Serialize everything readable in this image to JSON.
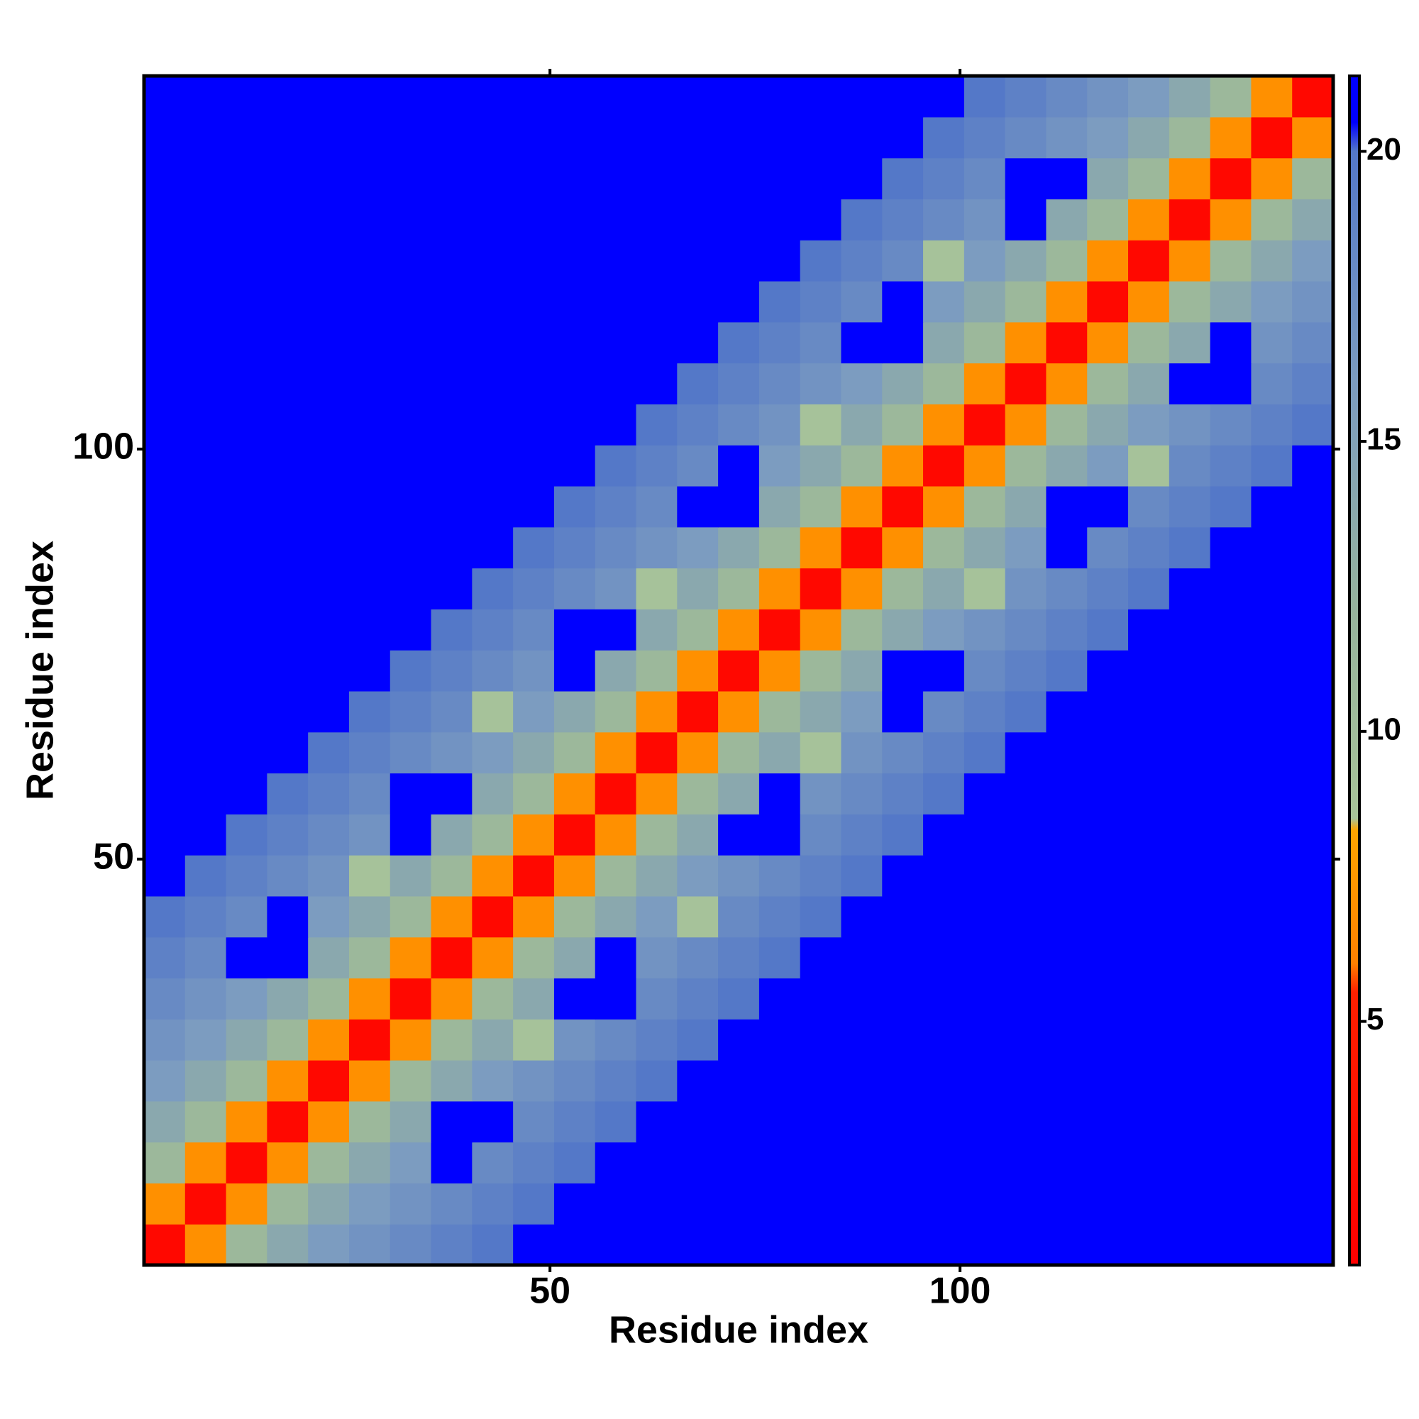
{
  "chart_data": {
    "type": "heatmap",
    "x_label": "Residue index",
    "y_label": "Residue index",
    "xlim": [
      0.5,
      145.5
    ],
    "ylim": [
      0.5,
      145.5
    ],
    "xticks": [
      50,
      100
    ],
    "yticks": [
      50,
      100
    ],
    "bins": [
      0.5,
      5.5,
      10.5,
      15.5,
      20.5,
      25.5,
      30.5,
      35.5,
      40.5,
      45.5,
      50.5,
      55.5,
      60.5,
      65.5,
      70.5,
      75.5,
      80.5,
      85.5,
      90.5,
      95.5,
      100.5,
      105.5,
      110.5,
      115.5,
      120.5,
      125.5,
      130.5,
      135.5,
      140.5,
      145.5
    ],
    "zlim": [
      0.8,
      21.3
    ],
    "zticks": [
      5,
      10,
      15,
      20
    ],
    "colorscale": [
      [
        0.8,
        "#ff0000"
      ],
      [
        5.5,
        "#ff2000"
      ],
      [
        6,
        "#ff8000"
      ],
      [
        8.3,
        "#ffa500"
      ],
      [
        8.5,
        "#a8c49a"
      ],
      [
        12,
        "#97b39c"
      ],
      [
        16,
        "#7c9cc0"
      ],
      [
        20,
        "#5478c8"
      ],
      [
        20.5,
        "#0000ff"
      ]
    ],
    "z": [
      [
        2,
        7,
        11,
        14,
        16,
        17,
        18,
        19,
        20,
        21,
        21,
        21,
        21,
        21,
        21,
        21,
        21,
        21,
        21,
        21,
        21,
        21,
        21,
        21,
        21,
        21,
        21,
        21,
        21
      ],
      [
        7,
        2,
        7,
        11,
        14,
        16,
        17,
        18,
        19,
        20,
        21,
        21,
        21,
        21,
        21,
        21,
        21,
        21,
        21,
        21,
        21,
        21,
        21,
        21,
        21,
        21,
        21,
        21,
        21
      ],
      [
        11,
        7,
        2,
        7,
        11,
        14,
        16,
        21,
        18,
        19,
        20,
        21,
        21,
        21,
        21,
        21,
        21,
        21,
        21,
        21,
        21,
        21,
        21,
        21,
        21,
        21,
        21,
        21,
        21
      ],
      [
        14,
        11,
        7,
        2,
        7,
        11,
        14,
        21,
        21,
        18,
        19,
        20,
        21,
        21,
        21,
        21,
        21,
        21,
        21,
        21,
        21,
        21,
        21,
        21,
        21,
        21,
        21,
        21,
        21
      ],
      [
        16,
        14,
        11,
        7,
        2,
        7,
        11,
        14,
        16,
        17,
        18,
        19,
        20,
        21,
        21,
        21,
        21,
        21,
        21,
        21,
        21,
        21,
        21,
        21,
        21,
        21,
        21,
        21,
        21
      ],
      [
        17,
        16,
        14,
        11,
        7,
        2,
        7,
        11,
        14,
        9,
        17,
        18,
        19,
        20,
        21,
        21,
        21,
        21,
        21,
        21,
        21,
        21,
        21,
        21,
        21,
        21,
        21,
        21,
        21
      ],
      [
        18,
        17,
        16,
        14,
        11,
        7,
        2,
        7,
        11,
        14,
        21,
        21,
        18,
        19,
        20,
        21,
        21,
        21,
        21,
        21,
        21,
        21,
        21,
        21,
        21,
        21,
        21,
        21,
        21
      ],
      [
        19,
        18,
        21,
        21,
        14,
        11,
        7,
        2,
        7,
        11,
        14,
        21,
        17,
        18,
        19,
        20,
        21,
        21,
        21,
        21,
        21,
        21,
        21,
        21,
        21,
        21,
        21,
        21,
        21
      ],
      [
        20,
        19,
        18,
        21,
        16,
        14,
        11,
        7,
        2,
        7,
        11,
        14,
        16,
        9,
        18,
        19,
        20,
        21,
        21,
        21,
        21,
        21,
        21,
        21,
        21,
        21,
        21,
        21,
        21
      ],
      [
        21,
        20,
        19,
        18,
        17,
        9,
        14,
        11,
        7,
        2,
        7,
        11,
        14,
        16,
        17,
        18,
        19,
        20,
        21,
        21,
        21,
        21,
        21,
        21,
        21,
        21,
        21,
        21,
        21
      ],
      [
        21,
        21,
        20,
        19,
        18,
        17,
        21,
        14,
        11,
        7,
        2,
        7,
        11,
        14,
        21,
        21,
        18,
        19,
        20,
        21,
        21,
        21,
        21,
        21,
        21,
        21,
        21,
        21,
        21
      ],
      [
        21,
        21,
        21,
        20,
        19,
        18,
        21,
        21,
        14,
        11,
        7,
        2,
        7,
        11,
        14,
        21,
        17,
        18,
        19,
        20,
        21,
        21,
        21,
        21,
        21,
        21,
        21,
        21,
        21
      ],
      [
        21,
        21,
        21,
        21,
        20,
        19,
        18,
        17,
        16,
        14,
        11,
        7,
        2,
        7,
        11,
        14,
        9,
        17,
        18,
        19,
        20,
        21,
        21,
        21,
        21,
        21,
        21,
        21,
        21
      ],
      [
        21,
        21,
        21,
        21,
        21,
        20,
        19,
        18,
        9,
        16,
        14,
        11,
        7,
        2,
        7,
        11,
        14,
        16,
        21,
        18,
        19,
        20,
        21,
        21,
        21,
        21,
        21,
        21,
        21
      ],
      [
        21,
        21,
        21,
        21,
        21,
        21,
        20,
        19,
        18,
        17,
        21,
        14,
        11,
        7,
        2,
        7,
        11,
        14,
        21,
        21,
        18,
        19,
        20,
        21,
        21,
        21,
        21,
        21,
        21
      ],
      [
        21,
        21,
        21,
        21,
        21,
        21,
        21,
        20,
        19,
        18,
        21,
        21,
        14,
        11,
        7,
        2,
        7,
        11,
        14,
        16,
        17,
        18,
        19,
        20,
        21,
        21,
        21,
        21,
        21
      ],
      [
        21,
        21,
        21,
        21,
        21,
        21,
        21,
        21,
        20,
        19,
        18,
        17,
        9,
        14,
        11,
        7,
        2,
        7,
        11,
        14,
        9,
        17,
        18,
        19,
        20,
        21,
        21,
        21,
        21
      ],
      [
        21,
        21,
        21,
        21,
        21,
        21,
        21,
        21,
        21,
        20,
        19,
        18,
        17,
        16,
        14,
        11,
        7,
        2,
        7,
        11,
        14,
        16,
        21,
        18,
        19,
        20,
        21,
        21,
        21
      ],
      [
        21,
        21,
        21,
        21,
        21,
        21,
        21,
        21,
        21,
        21,
        20,
        19,
        18,
        21,
        21,
        14,
        11,
        7,
        2,
        7,
        11,
        14,
        21,
        21,
        18,
        19,
        20,
        21,
        21
      ],
      [
        21,
        21,
        21,
        21,
        21,
        21,
        21,
        21,
        21,
        21,
        21,
        20,
        19,
        18,
        21,
        16,
        14,
        11,
        7,
        2,
        7,
        11,
        14,
        16,
        9,
        18,
        19,
        20,
        21
      ],
      [
        21,
        21,
        21,
        21,
        21,
        21,
        21,
        21,
        21,
        21,
        21,
        21,
        20,
        19,
        18,
        17,
        9,
        14,
        11,
        7,
        2,
        7,
        11,
        14,
        16,
        17,
        18,
        19,
        20
      ],
      [
        21,
        21,
        21,
        21,
        21,
        21,
        21,
        21,
        21,
        21,
        21,
        21,
        21,
        20,
        19,
        18,
        17,
        16,
        14,
        11,
        7,
        2,
        7,
        11,
        14,
        21,
        21,
        18,
        19
      ],
      [
        21,
        21,
        21,
        21,
        21,
        21,
        21,
        21,
        21,
        21,
        21,
        21,
        21,
        21,
        20,
        19,
        18,
        21,
        21,
        14,
        11,
        7,
        2,
        7,
        11,
        14,
        21,
        17,
        18
      ],
      [
        21,
        21,
        21,
        21,
        21,
        21,
        21,
        21,
        21,
        21,
        21,
        21,
        21,
        21,
        21,
        20,
        19,
        18,
        21,
        16,
        14,
        11,
        7,
        2,
        7,
        11,
        14,
        16,
        17
      ],
      [
        21,
        21,
        21,
        21,
        21,
        21,
        21,
        21,
        21,
        21,
        21,
        21,
        21,
        21,
        21,
        21,
        20,
        19,
        18,
        9,
        16,
        14,
        11,
        7,
        2,
        7,
        11,
        14,
        16
      ],
      [
        21,
        21,
        21,
        21,
        21,
        21,
        21,
        21,
        21,
        21,
        21,
        21,
        21,
        21,
        21,
        21,
        21,
        20,
        19,
        18,
        17,
        21,
        14,
        11,
        7,
        2,
        7,
        11,
        14
      ],
      [
        21,
        21,
        21,
        21,
        21,
        21,
        21,
        21,
        21,
        21,
        21,
        21,
        21,
        21,
        21,
        21,
        21,
        21,
        20,
        19,
        18,
        21,
        21,
        14,
        11,
        7,
        2,
        7,
        11
      ],
      [
        21,
        21,
        21,
        21,
        21,
        21,
        21,
        21,
        21,
        21,
        21,
        21,
        21,
        21,
        21,
        21,
        21,
        21,
        21,
        20,
        19,
        18,
        17,
        16,
        14,
        11,
        7,
        2,
        7
      ],
      [
        21,
        21,
        21,
        21,
        21,
        21,
        21,
        21,
        21,
        21,
        21,
        21,
        21,
        21,
        21,
        21,
        21,
        21,
        21,
        21,
        20,
        19,
        18,
        17,
        16,
        14,
        11,
        7,
        2
      ]
    ]
  }
}
